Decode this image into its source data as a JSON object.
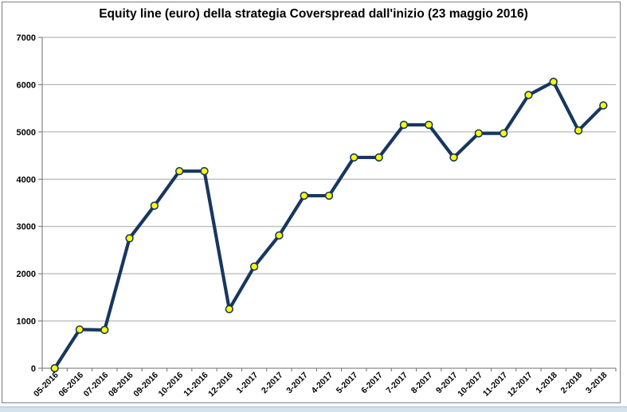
{
  "title": "Equity line (euro) della strategia Coverspread dall'inizio (23 maggio 2016)",
  "colors": {
    "line": "#17375E",
    "marker_fill": "#FFFF00",
    "marker_stroke": "#17375E",
    "gridline": "#A6A6A6",
    "axis": "#6E6E6E",
    "frame_border": "#7F7F7F",
    "background": "#FFFFFF",
    "text": "#000000",
    "page_strip": "#D2E1EB"
  },
  "chart_data": {
    "type": "line",
    "title": "Equity line (euro) della strategia Coverspread dall'inizio (23 maggio 2016)",
    "categories": [
      "05-2016",
      "06-2016",
      "07-2016",
      "08-2016",
      "09-2016",
      "10-2016",
      "11-2016",
      "12-2016",
      "1-2017",
      "2-2017",
      "3-2017",
      "4-2017",
      "5-2017",
      "6-2017",
      "7-2017",
      "8-2017",
      "9-2017",
      "10-2017",
      "11-2017",
      "12-2017",
      "1-2018",
      "2-2018",
      "3-2018"
    ],
    "series": [
      {
        "name": "Equity line (euro)",
        "values": [
          0,
          820,
          810,
          2750,
          3440,
          4170,
          4170,
          1250,
          2150,
          2810,
          3650,
          3650,
          4460,
          4460,
          5150,
          5150,
          4460,
          4970,
          4970,
          5780,
          6060,
          5030,
          5560
        ]
      }
    ],
    "xlabel": "",
    "ylabel": "",
    "ylim": [
      0,
      7000
    ],
    "yticks": [
      0,
      1000,
      2000,
      3000,
      4000,
      5000,
      6000,
      7000
    ],
    "grid": "horizontal",
    "legend": "none",
    "marker": "circle-yellow",
    "x_label_rotation_deg": -45
  }
}
